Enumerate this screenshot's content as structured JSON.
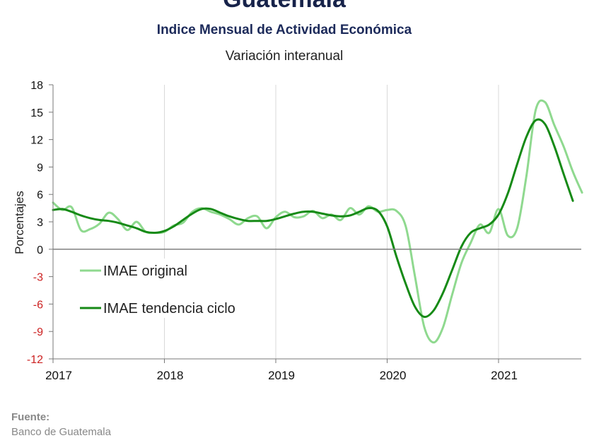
{
  "header": {
    "title": "Guatemala",
    "subtitle": "Indice Mensual de  Actividad Económica",
    "subtitle2": "Variación interanual"
  },
  "source": {
    "label": "Fuente:",
    "text": "Banco de Guatemala"
  },
  "chart_data": {
    "type": "line",
    "title": "Indice Mensual de  Actividad Económica",
    "subtitle": "Variación interanual",
    "xlabel": "",
    "ylabel": "Porcentajes",
    "ylim": [
      -12,
      18
    ],
    "yticks": [
      18,
      15,
      12,
      9,
      6,
      3,
      0,
      -3,
      -6,
      -9,
      -12
    ],
    "xlim": [
      2017,
      2021.75
    ],
    "xticks": [
      2017,
      2018,
      2019,
      2020,
      2021
    ],
    "grid": true,
    "legend_position": "bottom-left inside",
    "series": [
      {
        "name": "IMAE original",
        "color": "#8fd98f",
        "points": [
          [
            2017.0,
            5.1
          ],
          [
            2017.083,
            4.3
          ],
          [
            2017.167,
            4.6
          ],
          [
            2017.25,
            2.1
          ],
          [
            2017.333,
            2.2
          ],
          [
            2017.417,
            2.8
          ],
          [
            2017.5,
            4.0
          ],
          [
            2017.583,
            3.3
          ],
          [
            2017.667,
            2.1
          ],
          [
            2017.75,
            3.0
          ],
          [
            2017.833,
            1.9
          ],
          [
            2017.917,
            1.8
          ],
          [
            2018.0,
            1.9
          ],
          [
            2018.083,
            2.6
          ],
          [
            2018.167,
            2.9
          ],
          [
            2018.25,
            4.1
          ],
          [
            2018.333,
            4.5
          ],
          [
            2018.417,
            4.1
          ],
          [
            2018.5,
            3.8
          ],
          [
            2018.583,
            3.3
          ],
          [
            2018.667,
            2.7
          ],
          [
            2018.75,
            3.4
          ],
          [
            2018.833,
            3.6
          ],
          [
            2018.917,
            2.3
          ],
          [
            2019.0,
            3.5
          ],
          [
            2019.083,
            4.1
          ],
          [
            2019.167,
            3.5
          ],
          [
            2019.25,
            3.6
          ],
          [
            2019.333,
            4.2
          ],
          [
            2019.417,
            3.4
          ],
          [
            2019.5,
            3.8
          ],
          [
            2019.583,
            3.2
          ],
          [
            2019.667,
            4.5
          ],
          [
            2019.75,
            3.8
          ],
          [
            2019.833,
            4.7
          ],
          [
            2019.917,
            4.1
          ],
          [
            2020.0,
            4.3
          ],
          [
            2020.083,
            4.2
          ],
          [
            2020.167,
            2.5
          ],
          [
            2020.25,
            -3.0
          ],
          [
            2020.333,
            -8.5
          ],
          [
            2020.417,
            -10.2
          ],
          [
            2020.5,
            -8.6
          ],
          [
            2020.583,
            -5.0
          ],
          [
            2020.667,
            -1.5
          ],
          [
            2020.75,
            0.7
          ],
          [
            2020.833,
            2.7
          ],
          [
            2020.917,
            1.8
          ],
          [
            2021.0,
            4.4
          ],
          [
            2021.083,
            1.5
          ],
          [
            2021.167,
            2.3
          ],
          [
            2021.25,
            8.0
          ],
          [
            2021.333,
            15.2
          ],
          [
            2021.417,
            16.1
          ],
          [
            2021.5,
            13.6
          ],
          [
            2021.583,
            11.3
          ],
          [
            2021.667,
            8.5
          ],
          [
            2021.75,
            6.2
          ]
        ]
      },
      {
        "name": "IMAE tendencia ciclo",
        "color": "#168a16",
        "points": [
          [
            2017.0,
            4.3
          ],
          [
            2017.083,
            4.4
          ],
          [
            2017.167,
            4.1
          ],
          [
            2017.25,
            3.7
          ],
          [
            2017.333,
            3.4
          ],
          [
            2017.417,
            3.2
          ],
          [
            2017.5,
            3.1
          ],
          [
            2017.583,
            2.9
          ],
          [
            2017.667,
            2.6
          ],
          [
            2017.75,
            2.3
          ],
          [
            2017.833,
            1.9
          ],
          [
            2017.917,
            1.8
          ],
          [
            2018.0,
            2.0
          ],
          [
            2018.083,
            2.5
          ],
          [
            2018.167,
            3.2
          ],
          [
            2018.25,
            3.9
          ],
          [
            2018.333,
            4.4
          ],
          [
            2018.417,
            4.4
          ],
          [
            2018.5,
            4.0
          ],
          [
            2018.583,
            3.6
          ],
          [
            2018.667,
            3.3
          ],
          [
            2018.75,
            3.1
          ],
          [
            2018.833,
            3.1
          ],
          [
            2018.917,
            3.1
          ],
          [
            2019.0,
            3.3
          ],
          [
            2019.083,
            3.6
          ],
          [
            2019.167,
            3.9
          ],
          [
            2019.25,
            4.1
          ],
          [
            2019.333,
            4.1
          ],
          [
            2019.417,
            3.9
          ],
          [
            2019.5,
            3.7
          ],
          [
            2019.583,
            3.6
          ],
          [
            2019.667,
            3.7
          ],
          [
            2019.75,
            4.1
          ],
          [
            2019.833,
            4.5
          ],
          [
            2019.917,
            4.2
          ],
          [
            2020.0,
            2.5
          ],
          [
            2020.083,
            -0.8
          ],
          [
            2020.167,
            -3.8
          ],
          [
            2020.25,
            -6.3
          ],
          [
            2020.333,
            -7.4
          ],
          [
            2020.417,
            -6.7
          ],
          [
            2020.5,
            -4.8
          ],
          [
            2020.583,
            -2.3
          ],
          [
            2020.667,
            0.3
          ],
          [
            2020.75,
            1.8
          ],
          [
            2020.833,
            2.3
          ],
          [
            2020.917,
            2.7
          ],
          [
            2021.0,
            3.8
          ],
          [
            2021.083,
            6.1
          ],
          [
            2021.167,
            9.3
          ],
          [
            2021.25,
            12.3
          ],
          [
            2021.333,
            14.1
          ],
          [
            2021.417,
            13.7
          ],
          [
            2021.5,
            11.3
          ],
          [
            2021.583,
            8.3
          ],
          [
            2021.667,
            5.3
          ]
        ]
      }
    ]
  }
}
